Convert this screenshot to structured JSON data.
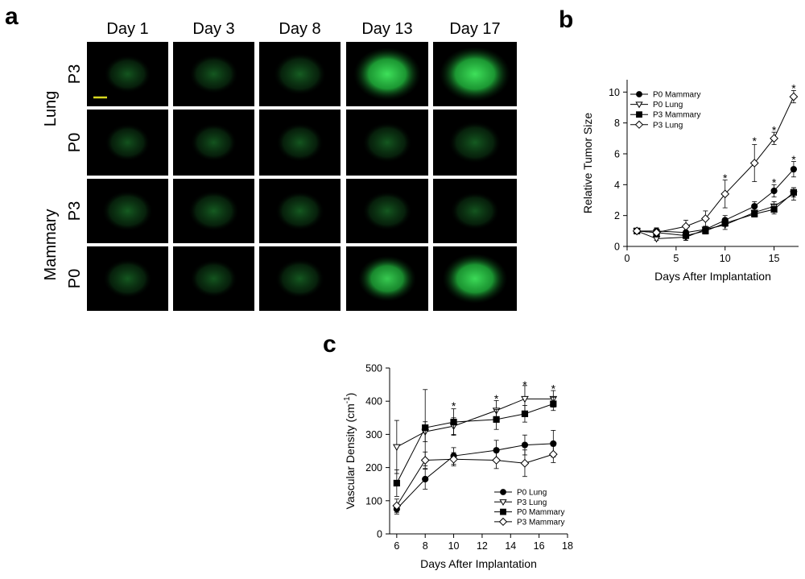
{
  "panels": {
    "a": {
      "letter": "a",
      "columns": [
        "Day 1",
        "Day 3",
        "Day 8",
        "Day 13",
        "Day 17"
      ],
      "groups": [
        "Lung",
        "Mammary"
      ],
      "rows": [
        {
          "group": "Lung",
          "label": "P3",
          "brightness": [
            0.45,
            0.5,
            0.6,
            0.95,
            1.0
          ]
        },
        {
          "group": "Lung",
          "label": "P0",
          "brightness": [
            0.4,
            0.42,
            0.45,
            0.5,
            0.55
          ]
        },
        {
          "group": "Mammary",
          "label": "P3",
          "brightness": [
            0.55,
            0.55,
            0.5,
            0.5,
            0.45
          ]
        },
        {
          "group": "Mammary",
          "label": "P0",
          "brightness": [
            0.5,
            0.45,
            0.5,
            0.7,
            0.85
          ]
        }
      ],
      "scale_bar_color": "#d8d820",
      "fluorescence_color": "#22c832"
    },
    "b": {
      "letter": "b"
    },
    "c": {
      "letter": "c"
    }
  },
  "chart_data": [
    {
      "id": "b",
      "type": "line",
      "title": "",
      "xlabel": "Days After Implantation",
      "ylabel": "Relative Tumor Size",
      "xlim": [
        0,
        17.5
      ],
      "ylim": [
        0,
        10.8
      ],
      "xticks": [
        0,
        5,
        10,
        15
      ],
      "yticks": [
        0,
        2,
        4,
        6,
        8,
        10
      ],
      "legend_position": "top-left",
      "series": [
        {
          "name": "P0 Mammary",
          "marker": "circle-filled",
          "x": [
            1,
            3,
            6,
            8,
            10,
            13,
            15,
            17
          ],
          "y": [
            1.0,
            1.0,
            0.9,
            1.1,
            1.7,
            2.6,
            3.6,
            5.0
          ],
          "err": [
            0.1,
            0.2,
            0.3,
            0.2,
            0.3,
            0.3,
            0.4,
            0.5
          ]
        },
        {
          "name": "P0 Lung",
          "marker": "triangle-down-open",
          "x": [
            1,
            3,
            6,
            8,
            10,
            13,
            15,
            17
          ],
          "y": [
            1.0,
            0.5,
            0.6,
            1.1,
            1.4,
            2.2,
            2.6,
            3.4
          ],
          "err": [
            0.1,
            0.1,
            0.2,
            0.2,
            0.3,
            0.3,
            0.3,
            0.4
          ]
        },
        {
          "name": "P3 Mammary",
          "marker": "square-filled",
          "x": [
            1,
            3,
            6,
            8,
            10,
            13,
            15,
            17
          ],
          "y": [
            1.0,
            0.9,
            0.7,
            1.0,
            1.5,
            2.1,
            2.4,
            3.5
          ],
          "err": [
            0.1,
            0.2,
            0.3,
            0.2,
            0.2,
            0.2,
            0.3,
            0.3
          ]
        },
        {
          "name": "P3 Lung",
          "marker": "diamond-open",
          "x": [
            1,
            3,
            6,
            8,
            10,
            13,
            15,
            17
          ],
          "y": [
            1.0,
            0.9,
            1.3,
            1.8,
            3.4,
            5.4,
            7.0,
            9.7
          ],
          "err": [
            0.1,
            0.3,
            0.4,
            0.5,
            0.9,
            1.2,
            0.4,
            0.4
          ]
        }
      ],
      "annotations": [
        {
          "text": "*",
          "x": 10,
          "y": 4.5
        },
        {
          "text": "*",
          "x": 13,
          "y": 6.9
        },
        {
          "text": "*",
          "x": 15,
          "y": 7.6
        },
        {
          "text": "*",
          "x": 17,
          "y": 10.3
        },
        {
          "text": "*",
          "x": 15,
          "y": 4.2
        },
        {
          "text": "*",
          "x": 17,
          "y": 5.7
        }
      ]
    },
    {
      "id": "c",
      "type": "line",
      "title": "",
      "xlabel": "Days After Implantation",
      "ylabel": "Vascular Density (cm",
      "ylabel_sup": "-1",
      "ylabel_end": ")",
      "xlim": [
        5.5,
        18
      ],
      "ylim": [
        0,
        500
      ],
      "xticks": [
        6,
        8,
        10,
        12,
        14,
        16,
        18
      ],
      "yticks": [
        0,
        100,
        200,
        300,
        400,
        500
      ],
      "legend_position": "bottom-right",
      "series": [
        {
          "name": "P0 Lung",
          "marker": "circle-filled",
          "x": [
            6,
            8,
            10,
            13,
            15,
            17
          ],
          "y": [
            75,
            165,
            235,
            252,
            268,
            272
          ],
          "err": [
            15,
            30,
            25,
            30,
            30,
            40
          ]
        },
        {
          "name": "P3 Lung",
          "marker": "triangle-down-open",
          "x": [
            6,
            8,
            10,
            13,
            15,
            17
          ],
          "y": [
            262,
            308,
            325,
            372,
            407,
            407
          ],
          "err": [
            80,
            30,
            25,
            30,
            40,
            25
          ]
        },
        {
          "name": "P0 Mammary",
          "marker": "square-filled",
          "x": [
            6,
            8,
            10,
            13,
            15,
            17
          ],
          "y": [
            153,
            320,
            337,
            345,
            362,
            392
          ],
          "err": [
            40,
            115,
            40,
            30,
            25,
            20
          ]
        },
        {
          "name": "P3 Mammary",
          "marker": "diamond-open",
          "x": [
            6,
            8,
            10,
            13,
            15,
            17
          ],
          "y": [
            85,
            222,
            225,
            222,
            213,
            240
          ],
          "err": [
            20,
            25,
            20,
            25,
            40,
            25
          ]
        }
      ],
      "annotations": [
        {
          "text": "*",
          "x": 10,
          "y": 388
        },
        {
          "text": "*",
          "x": 13,
          "y": 410
        },
        {
          "text": "*",
          "x": 15,
          "y": 452
        },
        {
          "text": "*",
          "x": 17,
          "y": 440
        }
      ]
    }
  ]
}
